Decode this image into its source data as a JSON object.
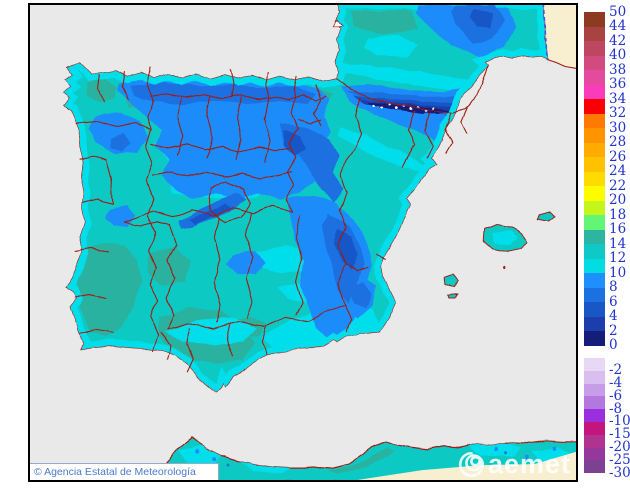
{
  "map": {
    "attribution": "© Agencia Estatal de Meteorología",
    "watermark_text": "aemet",
    "palette": {
      "sea": "#E9E9E9",
      "outside": "#F7EFD0",
      "border": "#9E1C12",
      "teal": "#2CB2A0",
      "turq": "#10C9C4",
      "cyan": "#01DEEC",
      "b8": "#1E8CFA",
      "b6": "#1B6FE0",
      "b4": "#1956C6",
      "b2": "#1C3EAC",
      "b0": "#141E7A",
      "dash": "#3A57E8"
    }
  },
  "colorbar": {
    "text_color": "#2233CC",
    "top_label": "50",
    "positive_bands": [
      {
        "color": "#8C3A20",
        "label": "44"
      },
      {
        "color": "#A94342",
        "label": "42"
      },
      {
        "color": "#BF4660",
        "label": "40"
      },
      {
        "color": "#D24B80",
        "label": "38"
      },
      {
        "color": "#E44A9D",
        "label": "36"
      },
      {
        "color": "#F93CB9",
        "label": "34"
      },
      {
        "color": "#FA0005",
        "label": "32"
      },
      {
        "color": "#FF7A00",
        "label": "30"
      },
      {
        "color": "#FF9300",
        "label": "28"
      },
      {
        "color": "#FFAB00",
        "label": "26"
      },
      {
        "color": "#FFC200",
        "label": "24"
      },
      {
        "color": "#FFDC00",
        "label": "22"
      },
      {
        "color": "#FFFC00",
        "label": "20"
      },
      {
        "color": "#C4F61C",
        "label": "18"
      },
      {
        "color": "#62F576",
        "label": "16"
      },
      {
        "color": "#2CB6A2",
        "label": "14"
      },
      {
        "color": "#0FC9C6",
        "label": "12"
      },
      {
        "color": "#02DCE3",
        "label": "10"
      },
      {
        "color": "#1E8FFC",
        "label": "8"
      },
      {
        "color": "#1B71E0",
        "label": "6"
      },
      {
        "color": "#1956C6",
        "label": "4"
      },
      {
        "color": "#1C3EAC",
        "label": "2"
      },
      {
        "color": "#141E7A",
        "label": "0"
      }
    ],
    "negative_bands": [
      {
        "color": "#E7D8F6",
        "label": "-2"
      },
      {
        "color": "#D9BEF0",
        "label": "-4"
      },
      {
        "color": "#C79DE9",
        "label": "-6"
      },
      {
        "color": "#B377E0",
        "label": "-8"
      },
      {
        "color": "#9A2FDE",
        "label": "-10"
      },
      {
        "color": "#C4147E",
        "label": "-15"
      },
      {
        "color": "#B03390",
        "label": "-20"
      },
      {
        "color": "#96389B",
        "label": "-25"
      },
      {
        "color": "#7C4190",
        "label": "-30"
      }
    ]
  }
}
